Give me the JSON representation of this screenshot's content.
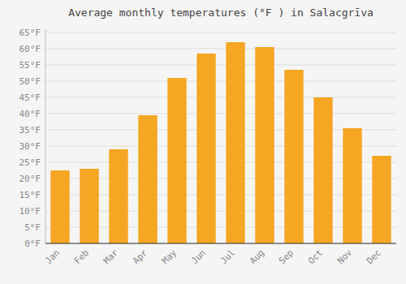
{
  "chart_data": {
    "type": "bar",
    "title": "Average monthly temperatures (°F ) in Salacgrīva",
    "categories": [
      "Jan",
      "Feb",
      "Mar",
      "Apr",
      "May",
      "Jun",
      "Jul",
      "Aug",
      "Sep",
      "Oct",
      "Nov",
      "Dec"
    ],
    "values": [
      22.5,
      23.0,
      29.0,
      39.5,
      51.0,
      58.5,
      62.0,
      60.5,
      53.5,
      45.0,
      35.5,
      27.0
    ],
    "color": "#F5A623",
    "ylim": [
      0,
      66
    ],
    "yticks": [
      {
        "value": 0,
        "label": "0°F"
      },
      {
        "value": 5,
        "label": "5°F"
      },
      {
        "value": 10,
        "label": "10°F"
      },
      {
        "value": 15,
        "label": "15°F"
      },
      {
        "value": 20,
        "label": "20°F"
      },
      {
        "value": 25,
        "label": "25°F"
      },
      {
        "value": 30,
        "label": "30°F"
      },
      {
        "value": 35,
        "label": "35°F"
      },
      {
        "value": 40,
        "label": "40°F"
      },
      {
        "value": 45,
        "label": "45°F"
      },
      {
        "value": 50,
        "label": "50°F"
      },
      {
        "value": 55,
        "label": "55°F"
      },
      {
        "value": 60,
        "label": "60°F"
      },
      {
        "value": 65,
        "label": "65°F"
      }
    ],
    "grid": true
  }
}
